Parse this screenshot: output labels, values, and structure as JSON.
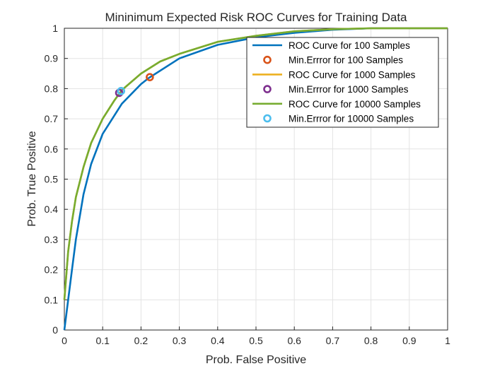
{
  "chart_data": {
    "type": "line",
    "title": "Mininimum Expected Risk ROC Curves for Training Data",
    "xlabel": "Prob. False Positive",
    "ylabel": "Prob. True Positive",
    "xlim": [
      0,
      1
    ],
    "ylim": [
      0,
      1
    ],
    "grid": true,
    "legend_position": "top-right",
    "x_ticks": [
      "0",
      "0.1",
      "0.2",
      "0.3",
      "0.4",
      "0.5",
      "0.6",
      "0.7",
      "0.8",
      "0.9",
      "1"
    ],
    "y_ticks": [
      "0",
      "0.1",
      "0.2",
      "0.3",
      "0.4",
      "0.5",
      "0.6",
      "0.7",
      "0.8",
      "0.9",
      "1"
    ],
    "series": [
      {
        "name": "ROC Curve for 100 Samples",
        "kind": "line",
        "color": "#0072BD",
        "x": [
          0,
          0.01,
          0.02,
          0.03,
          0.05,
          0.07,
          0.1,
          0.13,
          0.15,
          0.2,
          0.22,
          0.3,
          0.4,
          0.5,
          0.6,
          0.7,
          0.8,
          0.9,
          1.0
        ],
        "y": [
          0,
          0.1,
          0.2,
          0.3,
          0.45,
          0.55,
          0.65,
          0.71,
          0.75,
          0.815,
          0.835,
          0.9,
          0.945,
          0.97,
          0.985,
          0.995,
          1.0,
          1.0,
          1.0
        ]
      },
      {
        "name": "Min.Errror for 100 Samples",
        "kind": "marker",
        "color": "#D95319",
        "x": [
          0.223
        ],
        "y": [
          0.838
        ]
      },
      {
        "name": "ROC Curve for 1000 Samples",
        "kind": "line",
        "color": "#EDB120",
        "x": [
          0,
          0.01,
          0.02,
          0.03,
          0.05,
          0.07,
          0.1,
          0.13,
          0.15,
          0.2,
          0.25,
          0.3,
          0.4,
          0.5,
          0.6,
          0.7,
          0.8,
          0.9,
          1.0
        ],
        "y": [
          0.1,
          0.26,
          0.36,
          0.44,
          0.54,
          0.62,
          0.7,
          0.76,
          0.795,
          0.85,
          0.89,
          0.915,
          0.955,
          0.975,
          0.99,
          0.997,
          1.0,
          1.0,
          1.0
        ]
      },
      {
        "name": "Min.Errror for 1000 Samples",
        "kind": "marker",
        "color": "#7E2F8E",
        "x": [
          0.143
        ],
        "y": [
          0.786
        ]
      },
      {
        "name": "ROC Curve for 10000 Samples",
        "kind": "line",
        "color": "#77AC30",
        "x": [
          0,
          0.01,
          0.02,
          0.03,
          0.05,
          0.07,
          0.1,
          0.13,
          0.15,
          0.2,
          0.25,
          0.3,
          0.4,
          0.5,
          0.6,
          0.7,
          0.8,
          0.9,
          1.0
        ],
        "y": [
          0.1,
          0.26,
          0.36,
          0.44,
          0.54,
          0.62,
          0.7,
          0.76,
          0.795,
          0.85,
          0.89,
          0.915,
          0.955,
          0.975,
          0.99,
          0.997,
          1.0,
          1.0,
          1.0
        ]
      },
      {
        "name": "Min.Errror for 10000 Samples",
        "kind": "marker",
        "color": "#4DBEEE",
        "x": [
          0.148
        ],
        "y": [
          0.792
        ]
      }
    ]
  }
}
